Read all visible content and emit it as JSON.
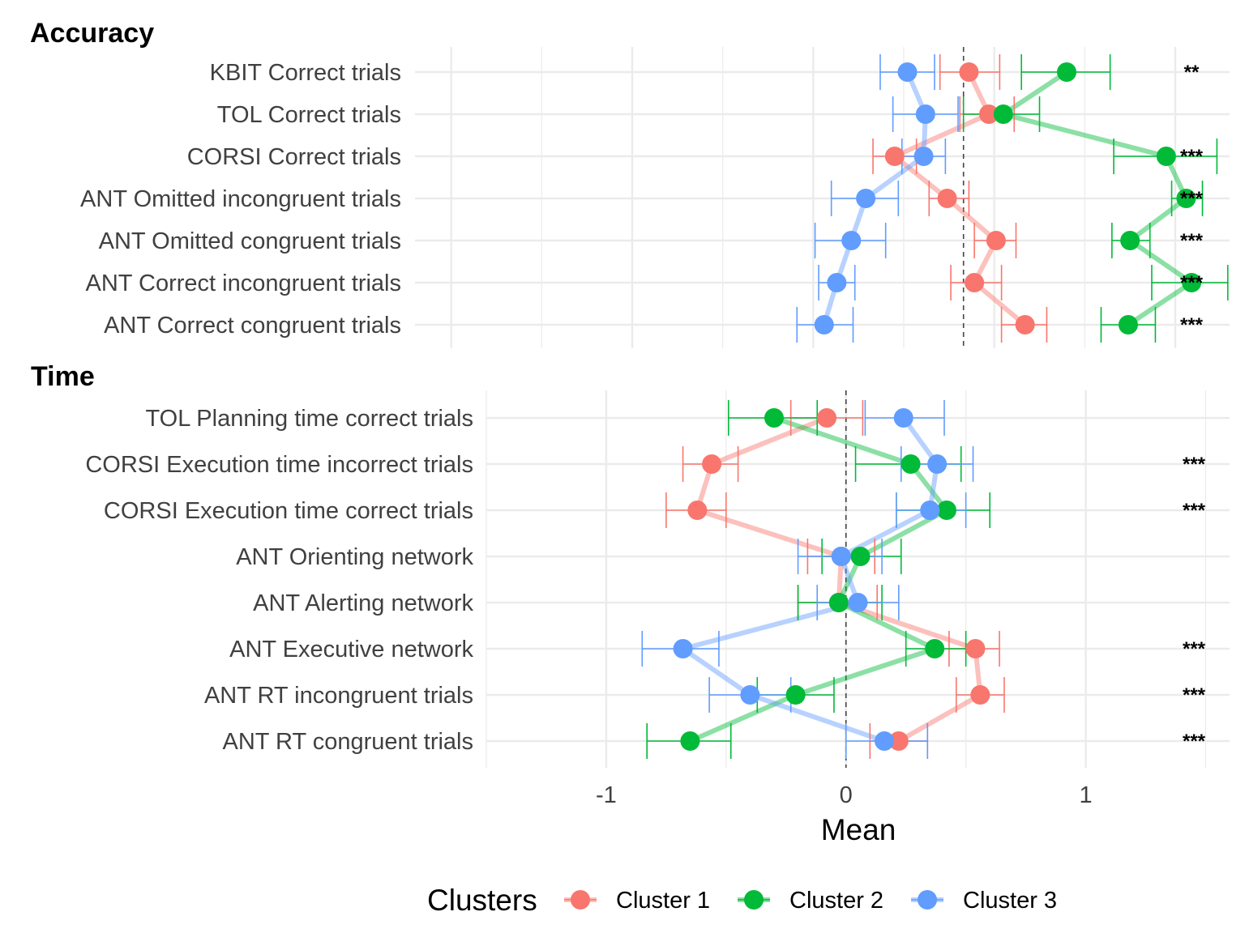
{
  "chart_data": {
    "type": "line",
    "x_axis": {
      "label": "Mean",
      "ticks": [
        -1,
        0,
        1
      ]
    },
    "legend": {
      "title": "Clusters",
      "placement": "bottom"
    },
    "series": [
      {
        "name": "Cluster 1",
        "color": "#F8766D"
      },
      {
        "name": "Cluster 2",
        "color": "#00BA38"
      },
      {
        "name": "Cluster 3",
        "color": "#619CFF"
      }
    ],
    "panels": [
      {
        "title": "Accuracy",
        "xlim": [
          -3.2,
          1.3
        ],
        "reference_x": -0.17,
        "rows": [
          {
            "label": "KBIT Correct trials",
            "sig": "**",
            "values": [
              [
                -0.14,
                -0.3,
                0.03
              ],
              [
                0.4,
                0.15,
                0.64
              ],
              [
                -0.48,
                -0.63,
                -0.33
              ]
            ]
          },
          {
            "label": "TOL Correct trials",
            "sig": "",
            "values": [
              [
                -0.03,
                -0.19,
                0.11
              ],
              [
                0.05,
                -0.17,
                0.25
              ],
              [
                -0.38,
                -0.56,
                -0.2
              ]
            ]
          },
          {
            "label": "CORSI Correct trials",
            "sig": "***",
            "values": [
              [
                -0.55,
                -0.67,
                -0.43
              ],
              [
                0.95,
                0.66,
                1.23
              ],
              [
                -0.39,
                -0.51,
                -0.27
              ]
            ]
          },
          {
            "label": "ANT Omitted incongruent trials",
            "sig": "***",
            "values": [
              [
                -0.26,
                -0.36,
                -0.14
              ],
              [
                1.06,
                0.98,
                1.15
              ],
              [
                -0.71,
                -0.9,
                -0.53
              ]
            ]
          },
          {
            "label": "ANT Omitted congruent trials",
            "sig": "***",
            "values": [
              [
                0.01,
                -0.11,
                0.12
              ],
              [
                0.75,
                0.65,
                0.86
              ],
              [
                -0.79,
                -0.99,
                -0.6
              ]
            ]
          },
          {
            "label": "ANT Correct incongruent trials",
            "sig": "***",
            "values": [
              [
                -0.11,
                -0.24,
                0.04
              ],
              [
                1.09,
                0.87,
                1.29
              ],
              [
                -0.87,
                -0.97,
                -0.77
              ]
            ]
          },
          {
            "label": "ANT Correct congruent trials",
            "sig": "***",
            "values": [
              [
                0.17,
                0.04,
                0.29
              ],
              [
                0.74,
                0.59,
                0.89
              ],
              [
                -0.94,
                -1.09,
                -0.78
              ]
            ]
          }
        ]
      },
      {
        "title": "Time",
        "xlim": [
          -1.5,
          1.6
        ],
        "reference_x": 0,
        "rows": [
          {
            "label": "TOL Planning time correct trials",
            "sig": "",
            "values": [
              [
                -0.08,
                -0.23,
                0.07
              ],
              [
                -0.3,
                -0.49,
                -0.12
              ],
              [
                0.24,
                0.08,
                0.41
              ]
            ]
          },
          {
            "label": "CORSI Execution time incorrect trials",
            "sig": "***",
            "values": [
              [
                -0.56,
                -0.68,
                -0.45
              ],
              [
                0.27,
                0.04,
                0.48
              ],
              [
                0.38,
                0.23,
                0.53
              ]
            ]
          },
          {
            "label": "CORSI Execution time correct trials",
            "sig": "***",
            "values": [
              [
                -0.62,
                -0.75,
                -0.5
              ],
              [
                0.42,
                0.21,
                0.6
              ],
              [
                0.35,
                0.21,
                0.5
              ]
            ]
          },
          {
            "label": "ANT Orienting network",
            "sig": "",
            "values": [
              [
                -0.02,
                -0.16,
                0.12
              ],
              [
                0.06,
                -0.1,
                0.23
              ],
              [
                -0.02,
                -0.2,
                0.15
              ]
            ]
          },
          {
            "label": "ANT Alerting network",
            "sig": "",
            "values": [
              [
                -0.03,
                -0.2,
                0.13
              ],
              [
                -0.03,
                -0.2,
                0.15
              ],
              [
                0.05,
                -0.12,
                0.22
              ]
            ]
          },
          {
            "label": "ANT Executive network",
            "sig": "***",
            "values": [
              [
                0.54,
                0.43,
                0.64
              ],
              [
                0.37,
                0.25,
                0.5
              ],
              [
                -0.68,
                -0.85,
                -0.53
              ]
            ]
          },
          {
            "label": "ANT RT incongruent trials",
            "sig": "***",
            "values": [
              [
                0.56,
                0.46,
                0.66
              ],
              [
                -0.21,
                -0.37,
                -0.05
              ],
              [
                -0.4,
                -0.57,
                -0.23
              ]
            ]
          },
          {
            "label": "ANT RT congruent trials",
            "sig": "***",
            "values": [
              [
                0.22,
                0.1,
                0.34
              ],
              [
                -0.65,
                -0.83,
                -0.48
              ],
              [
                0.16,
                0.0,
                0.34
              ]
            ]
          }
        ]
      }
    ]
  }
}
